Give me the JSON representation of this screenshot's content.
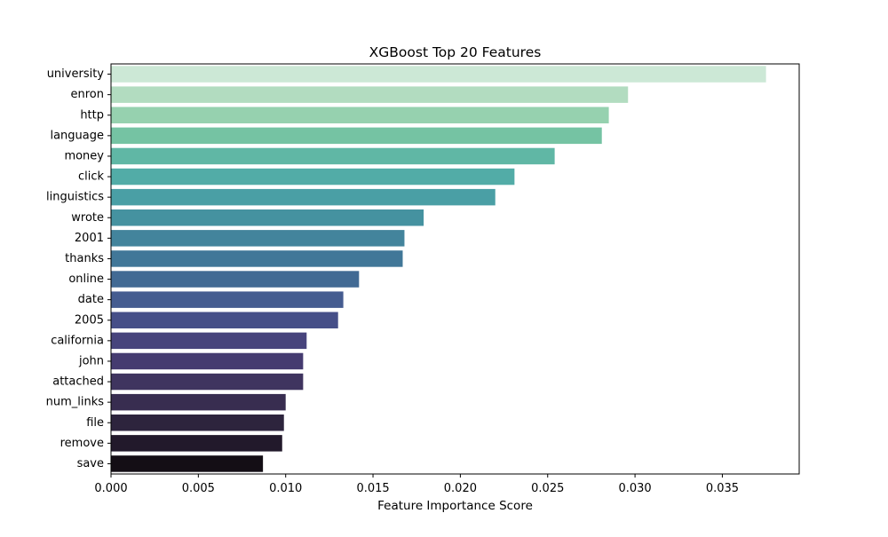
{
  "chart_data": {
    "type": "bar",
    "orientation": "horizontal",
    "title": "XGBoost Top 20 Features",
    "xlabel": "Feature Importance Score",
    "ylabel": "",
    "xlim": [
      0,
      0.0394
    ],
    "xticks": [
      "0.000",
      "0.005",
      "0.010",
      "0.015",
      "0.020",
      "0.025",
      "0.030",
      "0.035"
    ],
    "grid": false,
    "legend": "none",
    "categories": [
      "university",
      "enron",
      "http",
      "language",
      "money",
      "click",
      "linguistics",
      "wrote",
      "2001",
      "thanks",
      "online",
      "date",
      "2005",
      "california",
      "john",
      "attached",
      "num_links",
      "file",
      "remove",
      "save"
    ],
    "values": [
      0.0375,
      0.0296,
      0.0285,
      0.0281,
      0.0254,
      0.0231,
      0.022,
      0.0179,
      0.0168,
      0.0167,
      0.0142,
      0.0133,
      0.013,
      0.0112,
      0.011,
      0.011,
      0.01,
      0.0099,
      0.0098,
      0.0087
    ],
    "colors": [
      "#cce8d6",
      "#b2dcc0",
      "#96d1af",
      "#75c3a3",
      "#60b7a5",
      "#52aca7",
      "#4a9fa5",
      "#4592a0",
      "#43849c",
      "#417798",
      "#426a94",
      "#455c90",
      "#464f88",
      "#47447c",
      "#453b70",
      "#3f345f",
      "#382d50",
      "#2d243d",
      "#22192b",
      "#140e15"
    ]
  }
}
